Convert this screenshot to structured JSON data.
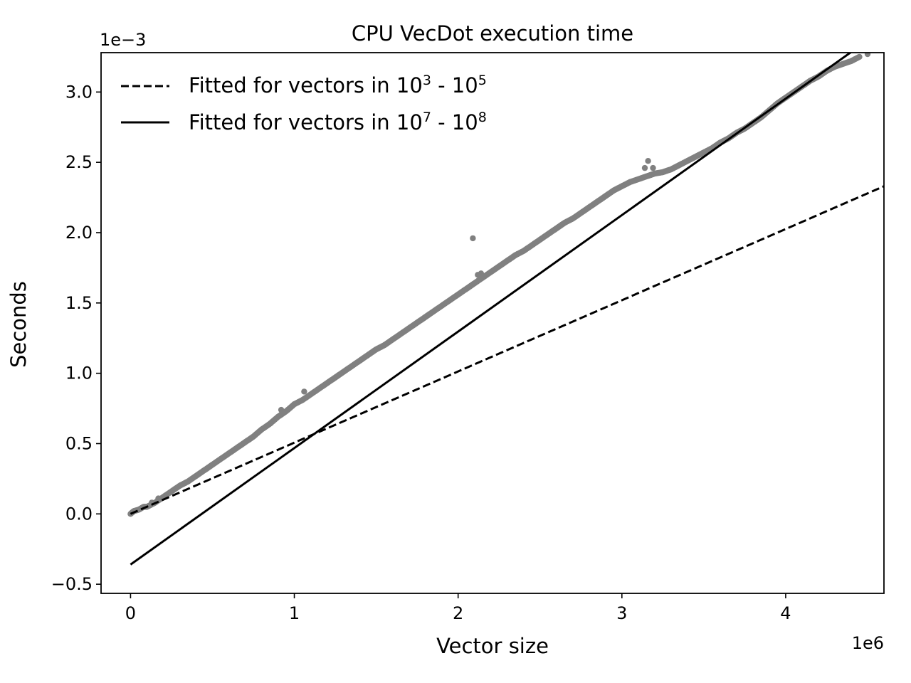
{
  "chart_data": {
    "type": "scatter",
    "title": "CPU VecDot execution time",
    "xlabel": "Vector size",
    "ylabel": "Seconds",
    "x_offset_label": "1e6",
    "y_offset_label": "1e−3",
    "x_scale": 1000000,
    "y_scale": 0.001,
    "xlim": [
      -0.18,
      4.6
    ],
    "ylim": [
      -0.565,
      3.28
    ],
    "x_ticks": [
      0,
      1,
      2,
      3,
      4
    ],
    "x_tick_labels": [
      "0",
      "1",
      "2",
      "3",
      "4"
    ],
    "y_ticks": [
      -0.5,
      0.0,
      0.5,
      1.0,
      1.5,
      2.0,
      2.5,
      3.0
    ],
    "y_tick_labels": [
      "−0.5",
      "0.0",
      "0.5",
      "1.0",
      "1.5",
      "2.0",
      "2.5",
      "3.0"
    ],
    "grid": false,
    "legend_position": "top-left",
    "series": [
      {
        "kind": "points",
        "color": "#808080",
        "points": [
          [
            0.0,
            0.0
          ],
          [
            0.02,
            0.02
          ],
          [
            0.05,
            0.03
          ],
          [
            0.08,
            0.05
          ],
          [
            0.1,
            0.05
          ],
          [
            0.15,
            0.08
          ],
          [
            0.2,
            0.12
          ],
          [
            0.25,
            0.16
          ],
          [
            0.3,
            0.2
          ],
          [
            0.35,
            0.23
          ],
          [
            0.4,
            0.27
          ],
          [
            0.45,
            0.31
          ],
          [
            0.5,
            0.35
          ],
          [
            0.55,
            0.39
          ],
          [
            0.6,
            0.43
          ],
          [
            0.65,
            0.47
          ],
          [
            0.7,
            0.51
          ],
          [
            0.75,
            0.55
          ],
          [
            0.8,
            0.6
          ],
          [
            0.85,
            0.64
          ],
          [
            0.9,
            0.69
          ],
          [
            0.95,
            0.73
          ],
          [
            1.0,
            0.78
          ],
          [
            1.05,
            0.81
          ],
          [
            1.1,
            0.85
          ],
          [
            1.15,
            0.89
          ],
          [
            1.2,
            0.93
          ],
          [
            1.25,
            0.97
          ],
          [
            1.3,
            1.01
          ],
          [
            1.35,
            1.05
          ],
          [
            1.4,
            1.09
          ],
          [
            1.45,
            1.13
          ],
          [
            1.5,
            1.17
          ],
          [
            1.55,
            1.2
          ],
          [
            1.6,
            1.24
          ],
          [
            1.65,
            1.28
          ],
          [
            1.7,
            1.32
          ],
          [
            1.75,
            1.36
          ],
          [
            1.8,
            1.4
          ],
          [
            1.85,
            1.44
          ],
          [
            1.9,
            1.48
          ],
          [
            1.95,
            1.52
          ],
          [
            2.0,
            1.56
          ],
          [
            2.05,
            1.6
          ],
          [
            2.1,
            1.64
          ],
          [
            2.15,
            1.68
          ],
          [
            2.2,
            1.72
          ],
          [
            2.25,
            1.76
          ],
          [
            2.3,
            1.8
          ],
          [
            2.35,
            1.84
          ],
          [
            2.4,
            1.87
          ],
          [
            2.45,
            1.91
          ],
          [
            2.5,
            1.95
          ],
          [
            2.55,
            1.99
          ],
          [
            2.6,
            2.03
          ],
          [
            2.65,
            2.07
          ],
          [
            2.7,
            2.1
          ],
          [
            2.75,
            2.14
          ],
          [
            2.8,
            2.18
          ],
          [
            2.85,
            2.22
          ],
          [
            2.9,
            2.26
          ],
          [
            2.95,
            2.3
          ],
          [
            3.0,
            2.33
          ],
          [
            3.05,
            2.36
          ],
          [
            3.1,
            2.38
          ],
          [
            3.15,
            2.4
          ],
          [
            3.2,
            2.42
          ],
          [
            3.25,
            2.43
          ],
          [
            3.3,
            2.45
          ],
          [
            3.35,
            2.48
          ],
          [
            3.4,
            2.51
          ],
          [
            3.45,
            2.54
          ],
          [
            3.5,
            2.57
          ],
          [
            3.55,
            2.6
          ],
          [
            3.6,
            2.64
          ],
          [
            3.65,
            2.67
          ],
          [
            3.7,
            2.71
          ],
          [
            3.75,
            2.74
          ],
          [
            3.8,
            2.78
          ],
          [
            3.85,
            2.82
          ],
          [
            3.9,
            2.87
          ],
          [
            3.95,
            2.92
          ],
          [
            4.0,
            2.96
          ],
          [
            4.05,
            3.0
          ],
          [
            4.1,
            3.04
          ],
          [
            4.15,
            3.08
          ],
          [
            4.2,
            3.11
          ],
          [
            4.25,
            3.15
          ],
          [
            4.3,
            3.18
          ],
          [
            4.35,
            3.2
          ],
          [
            4.4,
            3.22
          ],
          [
            4.45,
            3.25
          ],
          [
            4.5,
            3.27
          ],
          [
            0.92,
            0.74
          ],
          [
            1.06,
            0.87
          ],
          [
            2.09,
            1.96
          ],
          [
            2.12,
            1.7
          ],
          [
            2.14,
            1.71
          ],
          [
            3.14,
            2.46
          ],
          [
            3.16,
            2.51
          ],
          [
            3.19,
            2.46
          ],
          [
            0.17,
            0.11
          ],
          [
            0.13,
            0.08
          ]
        ]
      },
      {
        "kind": "line",
        "name": "Fitted for vectors in 10³ - 10⁵",
        "legend_base": "Fitted for vectors in 10",
        "legend_exp1": "3",
        "legend_mid": " - 10",
        "legend_exp2": "5",
        "style": "dashed",
        "color": "#000000",
        "x": [
          0.0,
          4.6
        ],
        "y": [
          0.0,
          2.33
        ]
      },
      {
        "kind": "line",
        "name": "Fitted for vectors in 10⁷ - 10⁸",
        "legend_base": "Fitted for vectors in 10",
        "legend_exp1": "7",
        "legend_mid": " - 10",
        "legend_exp2": "8",
        "style": "solid",
        "color": "#000000",
        "x": [
          0.0,
          4.6
        ],
        "y": [
          -0.36,
          3.45
        ]
      }
    ]
  }
}
